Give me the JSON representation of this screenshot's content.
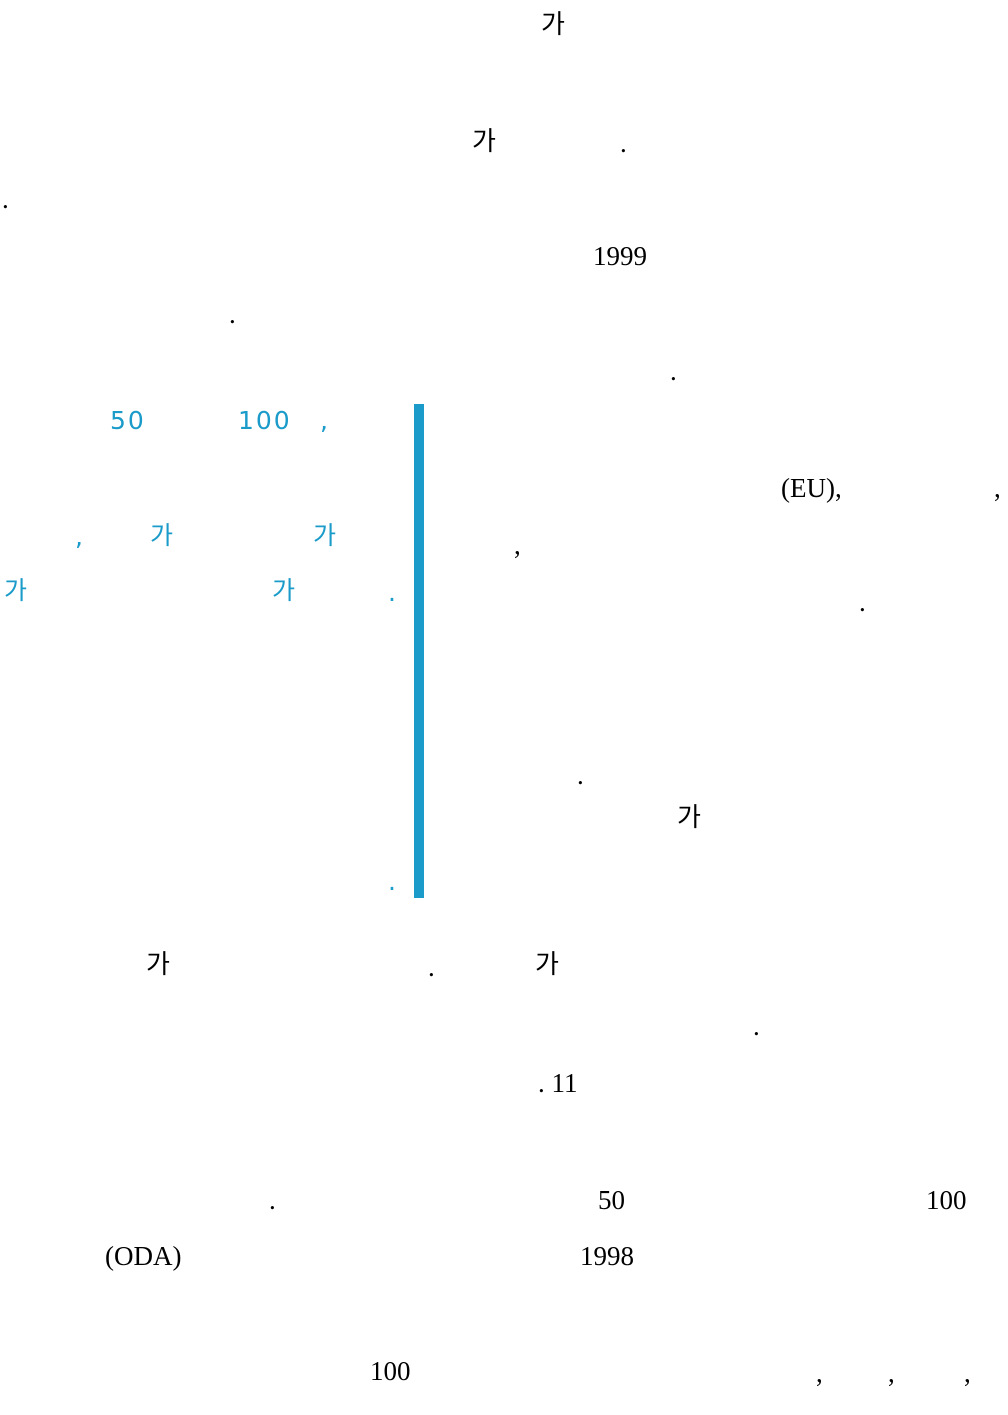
{
  "colors": {
    "body_text": "#000000",
    "accent": "#1a9bc9"
  },
  "body_text": {
    "l01": "가",
    "l02a": "가",
    "l02b": ".",
    "l03": ".",
    "l04": "1999",
    "l05": ".",
    "l06": ".",
    "l07a": "(EU),",
    "l07b": ",",
    "l08": ",",
    "l09": ".",
    "l10": ".",
    "l11": "가",
    "l12a": "가",
    "l12b": ".",
    "l12c": "가",
    "l13": ".",
    "l14": ". 11",
    "l15a": ".",
    "l15b": "50",
    "l15c": "100",
    "l16a": "(ODA)",
    "l16b": "1998",
    "l17a": "100",
    "l17b": ",",
    "l17c": ",",
    "l17d": ","
  },
  "pullquote": {
    "p1a": "50",
    "p1b": "100",
    "p1c": ",",
    "p2a": ",",
    "p2b": "가",
    "p2c": "가",
    "p3a": "가",
    "p3b": "가",
    "p3c": ".",
    "p4": "."
  }
}
